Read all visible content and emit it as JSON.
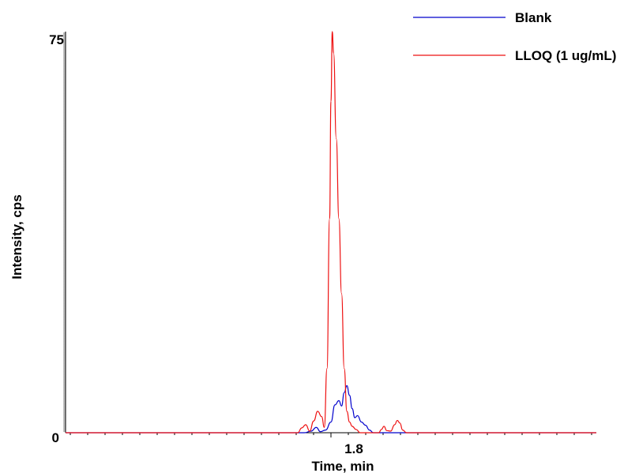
{
  "chart_data": {
    "type": "line",
    "xlabel": "Time, min",
    "ylabel": "Intensity, cps",
    "xlim": [
      1.6,
      2.0
    ],
    "ylim": [
      0,
      75
    ],
    "x_ticks": [
      1.8
    ],
    "y_ticks": [
      0,
      75
    ],
    "legend_position": "top-right",
    "grid": false,
    "series": [
      {
        "name": "Blank",
        "color": "#0000cc",
        "points": [
          [
            1.6,
            0
          ],
          [
            1.78,
            0
          ],
          [
            1.785,
            0.3
          ],
          [
            1.789,
            1.0
          ],
          [
            1.792,
            0.2
          ],
          [
            1.796,
            0.5
          ],
          [
            1.8,
            2.0
          ],
          [
            1.803,
            5.2
          ],
          [
            1.806,
            6.0
          ],
          [
            1.808,
            5.0
          ],
          [
            1.81,
            7.5
          ],
          [
            1.812,
            8.8
          ],
          [
            1.814,
            7.0
          ],
          [
            1.816,
            4.5
          ],
          [
            1.818,
            2.8
          ],
          [
            1.82,
            3.2
          ],
          [
            1.823,
            2.0
          ],
          [
            1.826,
            1.4
          ],
          [
            1.829,
            0.5
          ],
          [
            1.832,
            0
          ],
          [
            2.0,
            0
          ]
        ]
      },
      {
        "name": "LLOQ (1 ug/mL)",
        "color": "#ee1111",
        "points": [
          [
            1.6,
            0
          ],
          [
            1.775,
            0
          ],
          [
            1.778,
            0.9
          ],
          [
            1.781,
            1.5
          ],
          [
            1.784,
            0.3
          ],
          [
            1.787,
            2.2
          ],
          [
            1.79,
            4.0
          ],
          [
            1.793,
            3.0
          ],
          [
            1.795,
            1.0
          ],
          [
            1.797,
            12.0
          ],
          [
            1.799,
            40.0
          ],
          [
            1.8,
            62.0
          ],
          [
            1.801,
            75.0
          ],
          [
            1.802,
            71.0
          ],
          [
            1.804,
            55.0
          ],
          [
            1.806,
            40.0
          ],
          [
            1.808,
            26.0
          ],
          [
            1.81,
            12.0
          ],
          [
            1.812,
            4.0
          ],
          [
            1.814,
            2.0
          ],
          [
            1.816,
            1.2
          ],
          [
            1.819,
            0.6
          ],
          [
            1.822,
            0
          ],
          [
            1.836,
            0
          ],
          [
            1.838,
            0.6
          ],
          [
            1.84,
            1.2
          ],
          [
            1.842,
            0.4
          ],
          [
            1.845,
            0.3
          ],
          [
            1.848,
            1.5
          ],
          [
            1.85,
            2.3
          ],
          [
            1.852,
            1.8
          ],
          [
            1.854,
            0.5
          ],
          [
            1.857,
            0
          ],
          [
            2.0,
            0
          ]
        ]
      }
    ]
  }
}
